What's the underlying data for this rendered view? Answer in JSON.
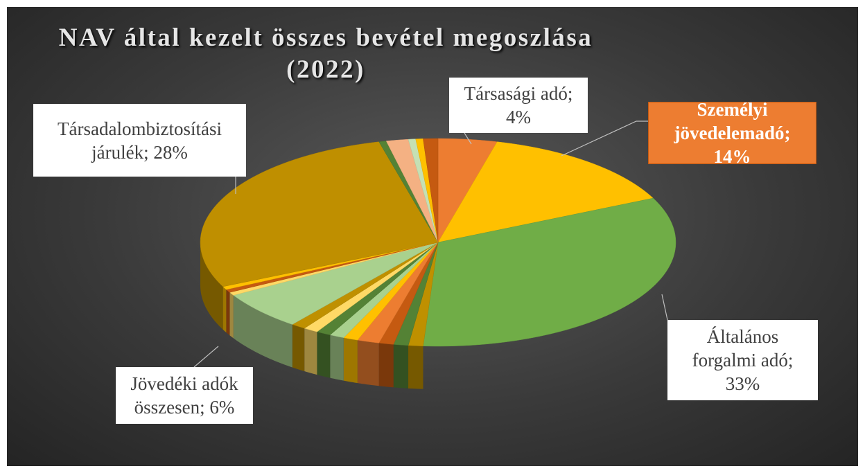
{
  "chart_data": {
    "type": "pie3d",
    "title": "NAV által kezelt összes bevétel megoszlása (2022)",
    "values": [
      4,
      14,
      33,
      1,
      1,
      1,
      1.5,
      1,
      1,
      1,
      1,
      1,
      6,
      0.5,
      0.5,
      0.5,
      28,
      0.5,
      1.5,
      0.5,
      0.5,
      1
    ],
    "labels": [
      "Társasági adó; 4%",
      "Személyi jövedelemadó; 14%",
      "Általános forgalmi adó; 33%",
      null,
      null,
      null,
      null,
      null,
      null,
      null,
      null,
      null,
      "Jövedéki adók összesen; 6%",
      null,
      null,
      null,
      "Társadalombiztosítási járulék; 28%",
      null,
      null,
      null,
      null,
      null
    ],
    "colors": [
      "#ed7d31",
      "#ffc000",
      "#70ad47",
      "#bf9000",
      "#548235",
      "#c55a11",
      "#ed7d31",
      "#ffc000",
      "#a9d18e",
      "#548235",
      "#ffd966",
      "#bf9000",
      "#a9d18e",
      "#ffd966",
      "#c55a11",
      "#ffc000",
      "#bf8f00",
      "#548235",
      "#f4b183",
      "#c5e0b4",
      "#ffc000",
      "#c55a11"
    ]
  }
}
